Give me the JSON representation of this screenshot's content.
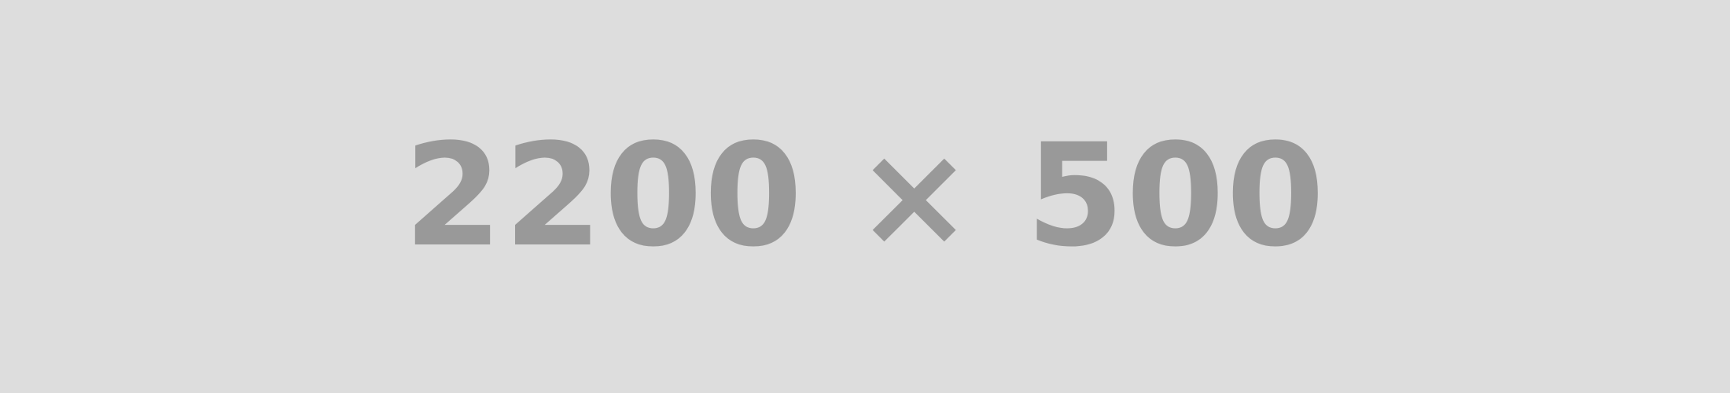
{
  "placeholder": {
    "label": "2200 × 500",
    "background_color": "#dddddd",
    "text_color": "#999999"
  }
}
